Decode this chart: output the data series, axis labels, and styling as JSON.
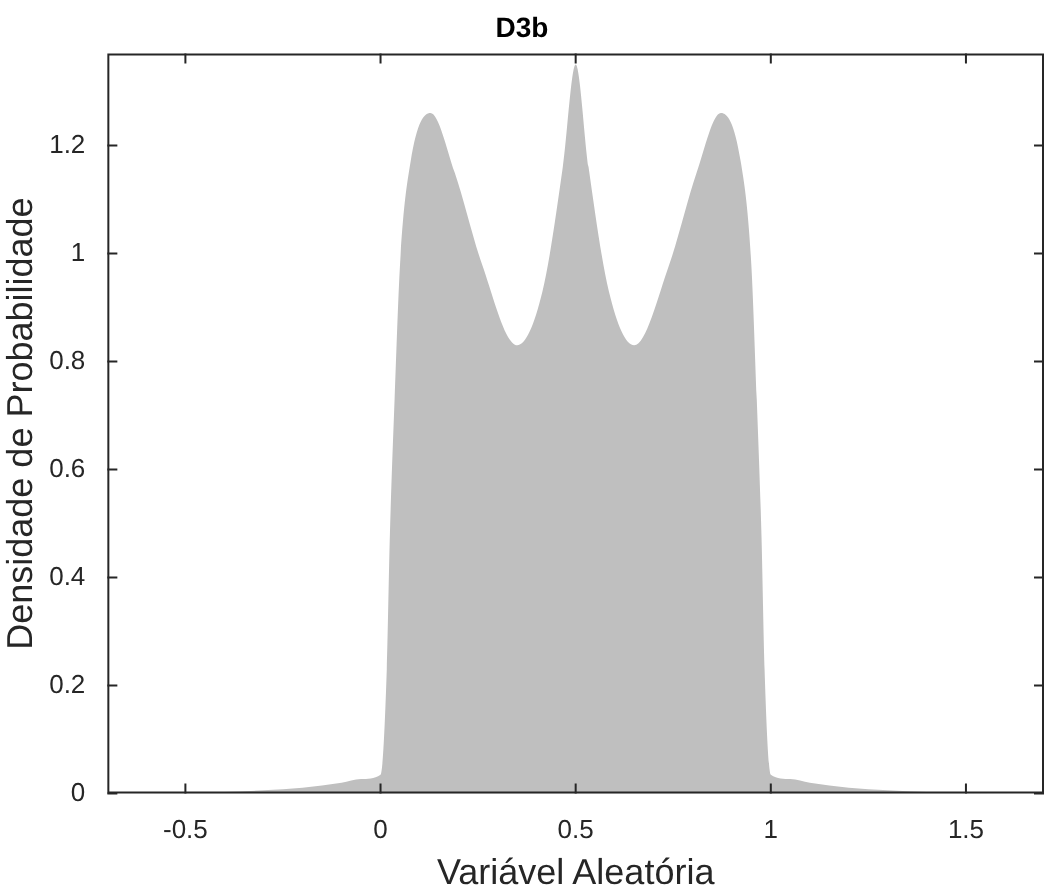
{
  "chart_data": {
    "type": "area",
    "title": "D3b",
    "xlabel": "Variável Aleatória",
    "ylabel": "Densidade de Probabilidade",
    "xlim": [
      -0.7,
      1.7
    ],
    "xticks": [
      -0.5,
      0,
      0.5,
      1,
      1.5
    ],
    "ylim": [
      0,
      1.37
    ],
    "yticks": [
      0,
      0.2,
      0.4,
      0.6,
      0.8,
      1,
      1.2
    ],
    "series": [
      {
        "color": "#bfbfbf",
        "x": [
          -0.7,
          -0.5,
          -0.4,
          -0.3,
          -0.2,
          -0.1,
          -0.05,
          0,
          0.016,
          0.024,
          0.036,
          0.05,
          0.077,
          0.128,
          0.19,
          0.26,
          0.35,
          0.415,
          0.467,
          0.5,
          0.533,
          0.585,
          0.65,
          0.74,
          0.81,
          0.872,
          0.923,
          0.95,
          0.964,
          0.976,
          0.984,
          1,
          1.05,
          1.1,
          1.2,
          1.3,
          1.4,
          1.5,
          1.7
        ],
        "values": [
          0,
          0.001,
          0.003,
          0.006,
          0.011,
          0.02,
          0.027,
          0.035,
          0.23,
          0.48,
          0.73,
          0.98,
          1.17,
          1.26,
          1.15,
          0.98,
          0.83,
          0.93,
          1.16,
          1.35,
          1.16,
          0.93,
          0.83,
          0.98,
          1.15,
          1.26,
          1.17,
          0.98,
          0.73,
          0.48,
          0.23,
          0.035,
          0.027,
          0.02,
          0.011,
          0.006,
          0.003,
          0.001,
          0
        ]
      }
    ]
  }
}
